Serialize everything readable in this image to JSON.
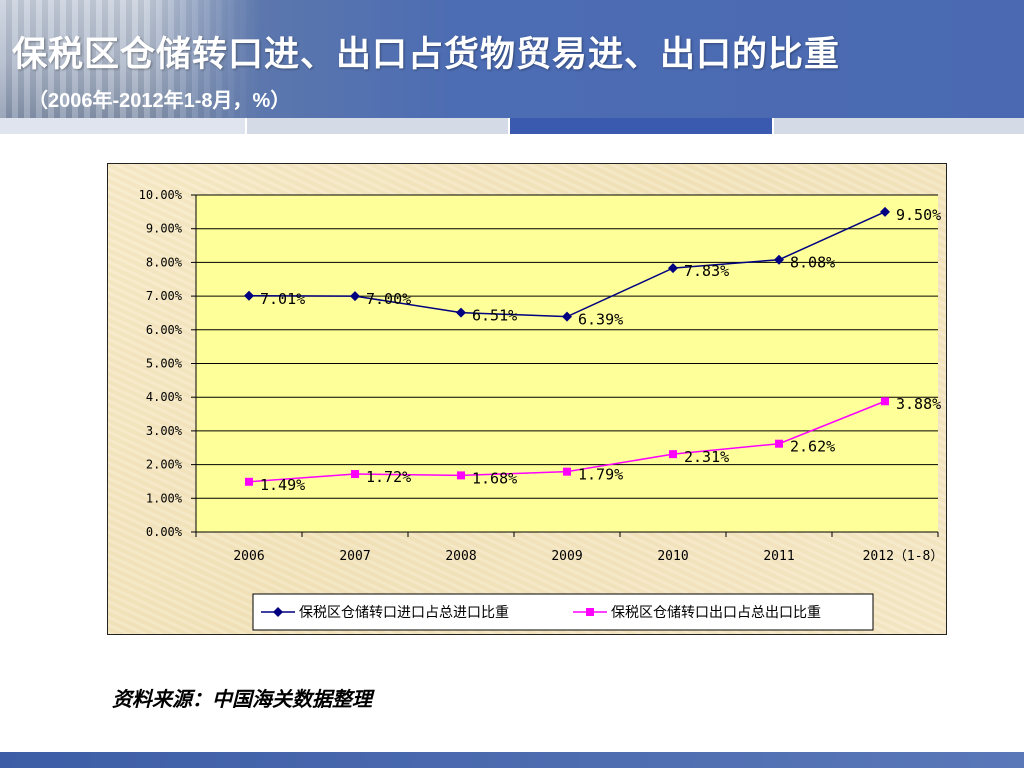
{
  "slide": {
    "title": "保税区仓储转口进、出口占货物贸易进、出口的比重",
    "subtitle": "（2006年-2012年1-8月，%）",
    "source": "资料来源：中国海关数据整理"
  },
  "colors": {
    "plot_bg": "#ffff99",
    "series1": "#000080",
    "series2": "#ff00ff",
    "header": "#4a69b2"
  },
  "chart_data": {
    "type": "line",
    "title": "",
    "xlabel": "",
    "ylabel": "",
    "categories": [
      "2006",
      "2007",
      "2008",
      "2009",
      "2010",
      "2011",
      "2012（1-8）"
    ],
    "ylim": [
      0,
      10
    ],
    "yticks": [
      "0.00%",
      "1.00%",
      "2.00%",
      "3.00%",
      "4.00%",
      "5.00%",
      "6.00%",
      "7.00%",
      "8.00%",
      "9.00%",
      "10.00%"
    ],
    "grid": true,
    "legend_position": "bottom",
    "series": [
      {
        "name": "保税区仓储转口进口占总进口比重",
        "values": [
          7.01,
          7.0,
          6.51,
          6.39,
          7.83,
          8.08,
          9.5
        ],
        "labels": [
          "7.01%",
          "7.00%",
          "6.51%",
          "6.39%",
          "7.83%",
          "8.08%",
          "9.50%"
        ],
        "color": "#000080",
        "marker": "diamond"
      },
      {
        "name": "保税区仓储转口出口占总出口比重",
        "values": [
          1.49,
          1.72,
          1.68,
          1.79,
          2.31,
          2.62,
          3.88
        ],
        "labels": [
          "1.49%",
          "1.72%",
          "1.68%",
          "1.79%",
          "2.31%",
          "2.62%",
          "3.88%"
        ],
        "color": "#ff00ff",
        "marker": "square"
      }
    ]
  }
}
